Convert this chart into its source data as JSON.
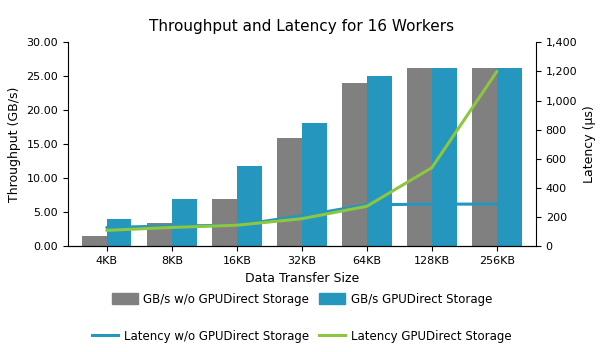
{
  "title": "Throughput and Latency for 16 Workers",
  "categories": [
    "4KB",
    "8KB",
    "16KB",
    "32KB",
    "64KB",
    "128KB",
    "256KB"
  ],
  "throughput_wo_gpu": [
    1.6,
    3.5,
    7.0,
    16.0,
    24.0,
    26.2,
    26.2
  ],
  "throughput_w_gpu": [
    4.0,
    7.0,
    11.8,
    18.2,
    25.0,
    26.2,
    26.2
  ],
  "latency_wo_gpu": [
    130,
    140,
    145,
    210,
    285,
    290,
    290
  ],
  "latency_w_gpu": [
    110,
    130,
    145,
    190,
    275,
    540,
    1200
  ],
  "bar_color_wo_gpu": "#808080",
  "bar_color_w_gpu": "#2596be",
  "line_color_wo_gpu": "#2596be",
  "line_color_w_gpu": "#8dc63f",
  "xlabel": "Data Transfer Size",
  "ylabel_left": "Throughput (GB/s)",
  "ylabel_right": "Latency (μs)",
  "ylim_left": [
    0,
    30
  ],
  "ylim_right": [
    0,
    1400
  ],
  "yticks_left": [
    0.0,
    5.0,
    10.0,
    15.0,
    20.0,
    25.0,
    30.0
  ],
  "yticks_right": [
    0,
    200,
    400,
    600,
    800,
    1000,
    1200,
    1400
  ],
  "legend_labels": [
    "GB/s w/o GPUDirect Storage",
    "GB/s GPUDirect Storage",
    "Latency w/o GPUDirect Storage",
    "Latency GPUDirect Storage"
  ],
  "bar_width": 0.38,
  "background_color": "#ffffff"
}
